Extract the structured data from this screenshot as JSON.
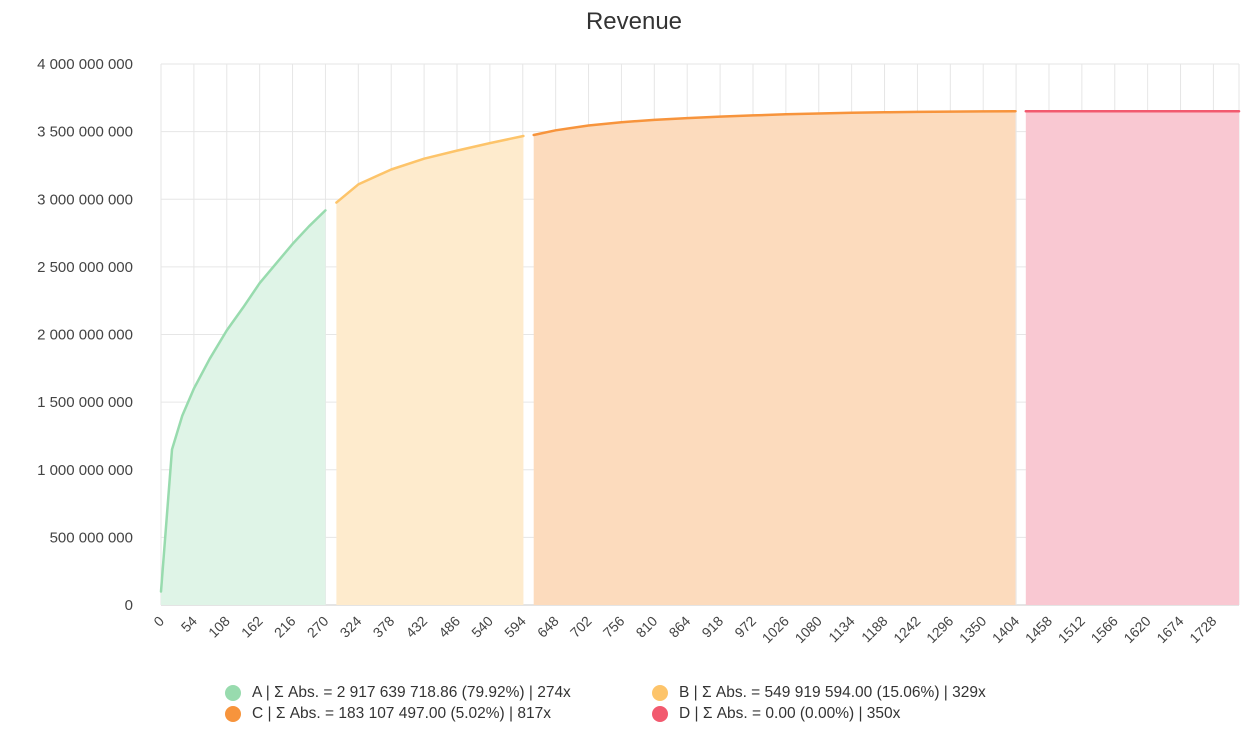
{
  "chart_data": {
    "type": "area",
    "title": "Revenue",
    "xlabel": "",
    "ylabel": "",
    "xlim": [
      0,
      1770
    ],
    "ylim": [
      0,
      4000000000
    ],
    "y_ticks": [
      0,
      500000000,
      1000000000,
      1500000000,
      2000000000,
      2500000000,
      3000000000,
      3500000000,
      4000000000
    ],
    "y_tick_labels": [
      "0",
      "500 000 000",
      "1 000 000 000",
      "1 500 000 000",
      "2 000 000 000",
      "2 500 000 000",
      "3 000 000 000",
      "3 500 000 000",
      "4 000 000 000"
    ],
    "x_ticks": [
      0,
      54,
      108,
      162,
      216,
      270,
      324,
      378,
      432,
      486,
      540,
      594,
      648,
      702,
      756,
      810,
      864,
      918,
      972,
      1026,
      1080,
      1134,
      1188,
      1242,
      1296,
      1350,
      1404,
      1458,
      1512,
      1566,
      1620,
      1674,
      1728
    ],
    "x_tick_labels": [
      "0",
      "54",
      "108",
      "162",
      "216",
      "270",
      "324",
      "378",
      "432",
      "486",
      "540",
      "594",
      "648",
      "702",
      "756",
      "810",
      "864",
      "918",
      "972",
      "1026",
      "1080",
      "1134",
      "1188",
      "1242",
      "1296",
      "1350",
      "1404",
      "1458",
      "1512",
      "1566",
      "1620",
      "1674",
      "1728"
    ],
    "grid": true,
    "legend_position": "bottom",
    "series": [
      {
        "name": "A",
        "legend_label": "A | Σ Abs. = 2 917 639 718.86 (79.92%) | 274x",
        "line_color": "#98dbae",
        "fill_color": "#dff4e7",
        "x": [
          0,
          18,
          35,
          54,
          80,
          108,
          135,
          162,
          190,
          216,
          243,
          270
        ],
        "y": [
          100000000,
          1150000000,
          1400000000,
          1600000000,
          1820000000,
          2030000000,
          2200000000,
          2380000000,
          2530000000,
          2670000000,
          2800000000,
          2917639719
        ]
      },
      {
        "name": "B",
        "legend_label": "B | Σ Abs. = 549 919 594.00 (15.06%) | 329x",
        "line_color": "#fdc46a",
        "fill_color": "#feebcd",
        "x": [
          288,
          324,
          378,
          432,
          486,
          540,
          595
        ],
        "y": [
          2975000000,
          3110000000,
          3220000000,
          3300000000,
          3360000000,
          3415000000,
          3467559313
        ]
      },
      {
        "name": "C",
        "legend_label": "C | Σ Abs. = 183 107 497.00 (5.02%) | 817x",
        "line_color": "#f7943c",
        "fill_color": "#fcdbbd",
        "x": [
          612,
          648,
          702,
          756,
          810,
          864,
          918,
          972,
          1026,
          1080,
          1134,
          1188,
          1242,
          1296,
          1350,
          1403
        ],
        "y": [
          3475000000,
          3510000000,
          3545000000,
          3570000000,
          3587000000,
          3600000000,
          3611000000,
          3620000000,
          3628000000,
          3634000000,
          3639000000,
          3643000000,
          3646000000,
          3648000000,
          3649500000,
          3650666810
        ]
      },
      {
        "name": "D",
        "legend_label": "D | Σ Abs. = 0.00 (0.00%) | 350x",
        "line_color": "#f25a6f",
        "fill_color": "#f9c8d2",
        "x": [
          1420,
          1770
        ],
        "y": [
          3650666810,
          3650666810
        ]
      }
    ]
  }
}
